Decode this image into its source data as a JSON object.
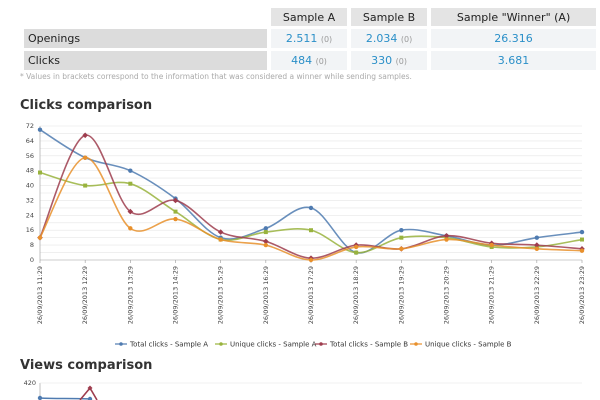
{
  "table": {
    "headers": [
      "Sample A",
      "Sample B",
      "Sample \"Winner\" (A)"
    ],
    "rows": [
      {
        "label": "Openings",
        "a": "2.511",
        "a_sub": "(0)",
        "b": "2.034",
        "b_sub": "(0)",
        "winner": "26.316"
      },
      {
        "label": "Clicks",
        "a": "484",
        "a_sub": "(0)",
        "b": "330",
        "b_sub": "(0)",
        "winner": "3.681"
      }
    ]
  },
  "footnote": "* Values in brackets correspond to the information that was considered a winner while sending samples.",
  "clicks_section_title": "Clicks comparison",
  "views_section_title": "Views comparison",
  "chart_data": [
    {
      "type": "line",
      "title": "Clicks comparison",
      "x": [
        "26/09/2013 11:29",
        "26/09/2013 12:29",
        "26/09/2013 13:29",
        "26/09/2013 14:29",
        "26/09/2013 15:29",
        "26/09/2013 16:29",
        "26/09/2013 17:29",
        "26/09/2013 18:29",
        "26/09/2013 19:29",
        "26/09/2013 20:29",
        "26/09/2013 21:29",
        "26/09/2013 22:29",
        "26/09/2013 23:29"
      ],
      "yticks": [
        0,
        8,
        16,
        24,
        32,
        40,
        48,
        56,
        64,
        72
      ],
      "ylim": [
        0,
        72
      ],
      "grid": true,
      "legend": "bottom",
      "series": [
        {
          "name": "Total clicks - Sample A",
          "color": "#4f7bb0",
          "values": [
            70,
            55,
            48,
            33,
            12,
            17,
            28,
            4,
            16,
            13,
            8,
            12,
            15
          ]
        },
        {
          "name": "Unique clicks - Sample A",
          "color": "#99b33d",
          "values": [
            47,
            40,
            41,
            26,
            11,
            15,
            16,
            4,
            12,
            12,
            7,
            7,
            11
          ]
        },
        {
          "name": "Total clicks - Sample B",
          "color": "#9e3d4e",
          "values": [
            12,
            67,
            26,
            32,
            15,
            10,
            1,
            8,
            6,
            13,
            9,
            8,
            6
          ]
        },
        {
          "name": "Unique clicks - Sample B",
          "color": "#e8902c",
          "values": [
            12,
            55,
            17,
            22,
            11,
            8,
            0,
            7,
            6,
            11,
            8,
            6,
            5
          ]
        }
      ]
    },
    {
      "type": "line",
      "title": "Views comparison",
      "yticks": [
        420
      ],
      "series_colors": [
        "#4f7bb0",
        "#9e3d4e"
      ]
    }
  ]
}
